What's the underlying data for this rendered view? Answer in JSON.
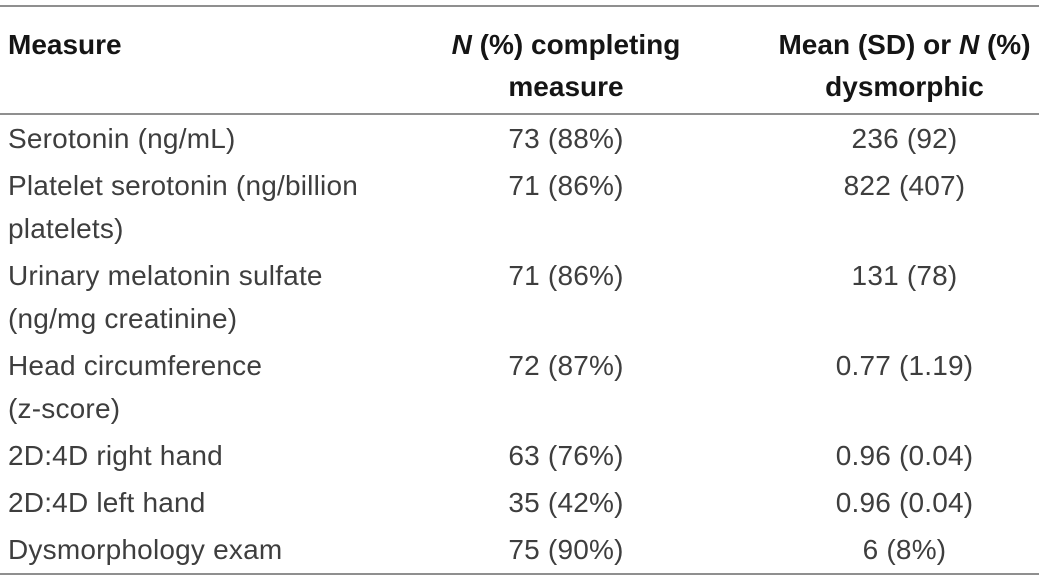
{
  "table": {
    "kind": "table",
    "header": {
      "measure_label": "Measure",
      "completing_italic": "N",
      "completing_rest": " (%) completing measure",
      "value_part1": "Mean (SD) or ",
      "value_italic": "N",
      "value_part2": " (%) dysmorphic"
    },
    "rows": [
      {
        "measure": [
          "Serotonin (ng/mL)"
        ],
        "completing": "73 (88%)",
        "value": "236 (92)"
      },
      {
        "measure": [
          "Platelet serotonin (ng/billion",
          "platelets)"
        ],
        "completing": "71 (86%)",
        "value": "822 (407)"
      },
      {
        "measure": [
          "Urinary melatonin sulfate",
          "(ng/mg creatinine)"
        ],
        "completing": "71 (86%)",
        "value": "131 (78)"
      },
      {
        "measure": [
          "Head circumference",
          "(z-score)"
        ],
        "completing": "72 (87%)",
        "value": "0.77 (1.19)"
      },
      {
        "measure": [
          "2D:4D right hand"
        ],
        "completing": "63 (76%)",
        "value": "0.96 (0.04)"
      },
      {
        "measure": [
          "2D:4D left hand"
        ],
        "completing": "35 (42%)",
        "value": "0.96 (0.04)"
      },
      {
        "measure": [
          "Dysmorphology exam"
        ],
        "completing": "75 (90%)",
        "value": "6 (8%)"
      }
    ],
    "colors": {
      "rule": "#8f8f8f",
      "header_text": "#151515",
      "body_text": "#3e3e3e",
      "background": "#ffffff"
    }
  }
}
